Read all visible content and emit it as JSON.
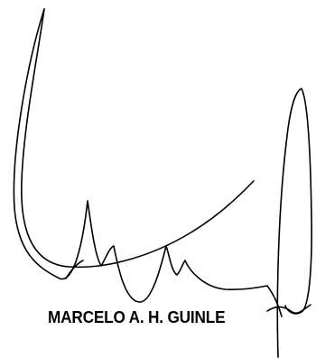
{
  "signature": {
    "printed_name": "MARCELO A. H. GUINLE",
    "ink_color": "#000000"
  }
}
